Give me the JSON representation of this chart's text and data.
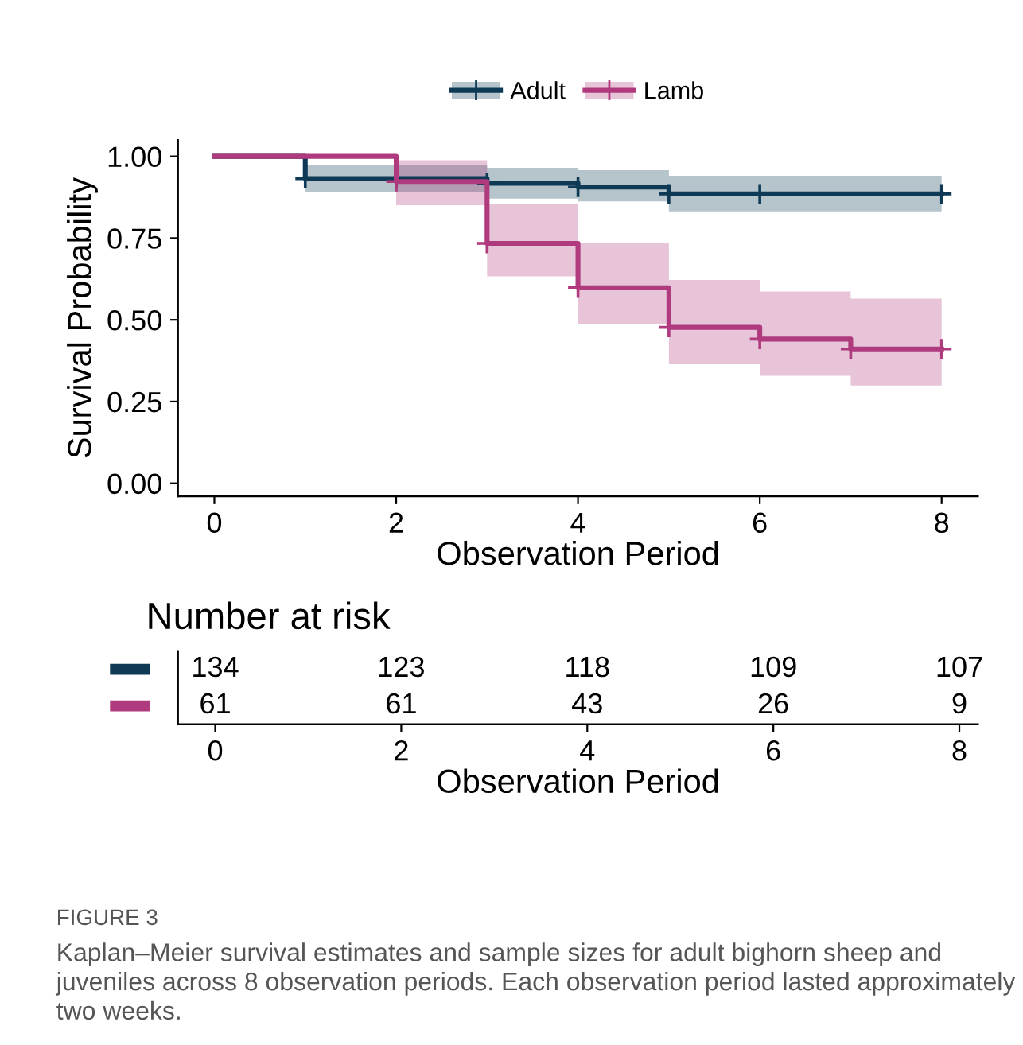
{
  "chart_data": [
    {
      "type": "step",
      "ylabel": "Survival Probability",
      "xlabel": "Observation Period",
      "legend": "top",
      "marker": "cross",
      "grid": false,
      "xlim": [
        -0.4,
        8.4
      ],
      "xticks": [
        0,
        2,
        4,
        6,
        8
      ],
      "ylim": [
        -0.04,
        1.05
      ],
      "yticks": [
        {
          "value": 0,
          "label": "0.00"
        },
        {
          "value": 0.25,
          "label": "0.25"
        },
        {
          "value": 0.5,
          "label": "0.50"
        },
        {
          "value": 0.75,
          "label": "0.75"
        },
        {
          "value": 1,
          "label": "1.00"
        }
      ],
      "series": [
        {
          "name": "Adult",
          "color": "#0e3a56",
          "x": [
            0,
            1,
            2,
            3,
            4,
            5,
            6,
            8
          ],
          "values": [
            1,
            0.932,
            0.932,
            0.918,
            0.906,
            0.885,
            0.885,
            0.885
          ],
          "lower": [
            null,
            0.892,
            0.892,
            0.871,
            0.862,
            0.832,
            0.832,
            0.832
          ],
          "upper": [
            null,
            0.974,
            0.974,
            0.965,
            0.958,
            0.941,
            0.941,
            0.941
          ]
        },
        {
          "name": "Lamb",
          "color": "#b03a7e",
          "x": [
            0,
            2,
            3,
            4,
            5,
            6,
            7,
            8
          ],
          "values": [
            1,
            0.923,
            0.734,
            0.598,
            0.477,
            0.441,
            0.411,
            0.411
          ],
          "lower": [
            null,
            0.851,
            0.633,
            0.486,
            0.364,
            0.329,
            0.299,
            0.299
          ],
          "upper": [
            null,
            0.988,
            0.853,
            0.736,
            0.622,
            0.587,
            0.565,
            0.565
          ]
        }
      ]
    },
    {
      "type": "heatmap",
      "title": "Number at risk",
      "xlabel": "Observation Period",
      "categories": [
        "0",
        "2",
        "4",
        "6",
        "8"
      ],
      "y_categories": [
        null,
        null
      ],
      "data_labels": true,
      "cells": [
        [
          134,
          123,
          118,
          109,
          107
        ],
        [
          61,
          61,
          43,
          26,
          9
        ]
      ],
      "annotations": [
        "FIGURE 3",
        "Kaplan–Meier survival estimates and sample sizes for adult bighorn sheep and juveniles across 8 observation periods. Each observation period lasted approximately two weeks."
      ]
    }
  ]
}
